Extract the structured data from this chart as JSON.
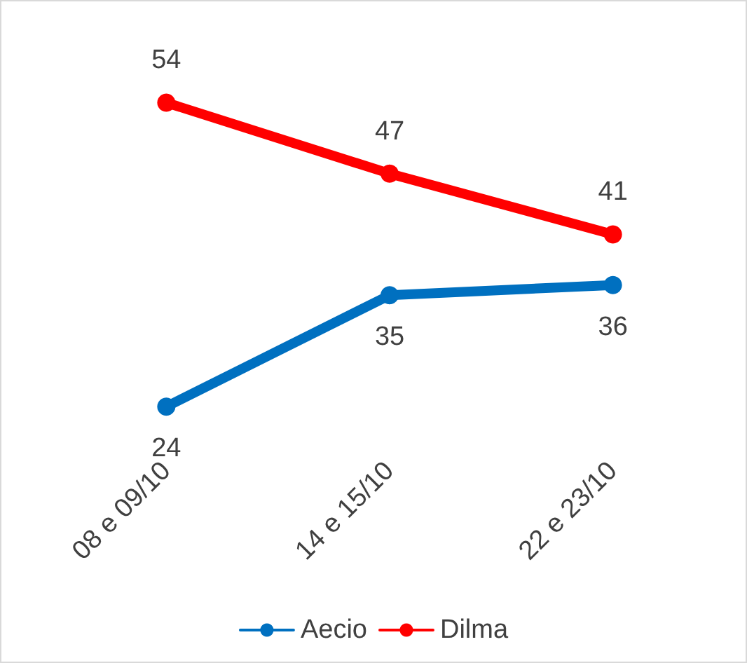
{
  "chart_data": {
    "type": "line",
    "categories": [
      "08 e 09/10",
      "14 e 15/10",
      "22 e 23/10"
    ],
    "series": [
      {
        "name": "Aecio",
        "color": "#0070c0",
        "values": [
          24,
          35,
          36
        ]
      },
      {
        "name": "Dilma",
        "color": "#ff0000",
        "values": [
          54,
          47,
          41
        ]
      }
    ],
    "data_labels": true,
    "legend": "bottom",
    "marker": "circle",
    "line_style": "solid",
    "grid": false
  }
}
